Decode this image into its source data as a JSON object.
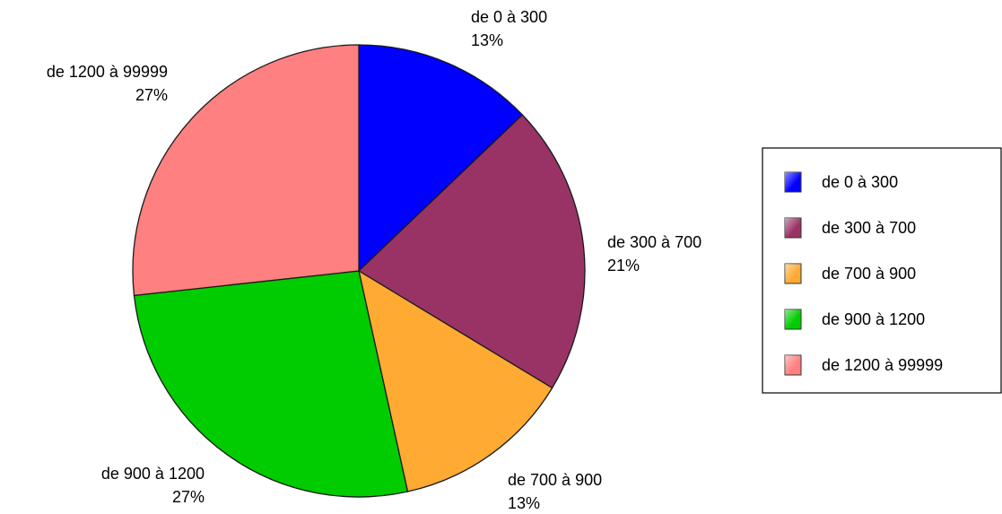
{
  "chart_data": {
    "type": "pie",
    "title": "",
    "legend_position": "right",
    "series": [
      {
        "values": [
          {
            "label": "de 0 à 300",
            "percent": "13%",
            "value": 13,
            "color": "#0000ff"
          },
          {
            "label": "de 300 à 700",
            "percent": "21%",
            "value": 21,
            "color": "#993366"
          },
          {
            "label": "de 700 à 900",
            "percent": "13%",
            "value": 13,
            "color": "#ffaa33"
          },
          {
            "label": "de 900 à 1200",
            "percent": "27%",
            "value": 27,
            "color": "#00cc00"
          },
          {
            "label": "de 1200 à 99999",
            "percent": "27%",
            "value": 27,
            "color": "#ff8080"
          }
        ]
      }
    ]
  }
}
